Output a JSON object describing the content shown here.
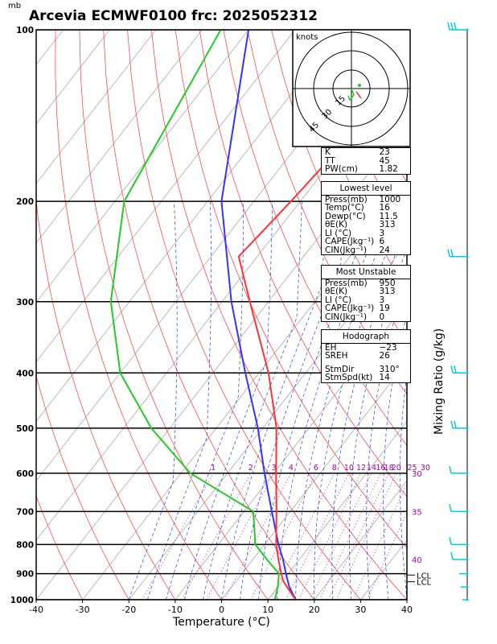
{
  "title": "Arcevia ECMWF0100 frc: 2025052312",
  "unit_mb": "mb",
  "chart_data": {
    "type": "skew-t",
    "xlabel": "Temperature (°C)",
    "right_label": "Mixing Ratio (g/kg)",
    "xlim": [
      -40,
      40
    ],
    "ylim": [
      1000,
      100
    ],
    "x_ticks": [
      "-40",
      "-30",
      "-20",
      "-10",
      "0",
      "10",
      "20",
      "30",
      "40"
    ],
    "p_levels": [
      "100",
      "200",
      "300",
      "400",
      "500",
      "600",
      "700",
      "800",
      "900",
      "1000"
    ],
    "temperature": [
      {
        "p": 1000,
        "t": 16
      },
      {
        "p": 975,
        "t": 14
      },
      {
        "p": 950,
        "t": 12
      },
      {
        "p": 925,
        "t": 10
      },
      {
        "p": 900,
        "t": 8.5
      },
      {
        "p": 850,
        "t": 5.5
      },
      {
        "p": 800,
        "t": 2.5
      },
      {
        "p": 700,
        "t": -3
      },
      {
        "p": 600,
        "t": -9.5
      },
      {
        "p": 500,
        "t": -17
      },
      {
        "p": 400,
        "t": -28
      },
      {
        "p": 300,
        "t": -44
      },
      {
        "p": 250,
        "t": -54
      },
      {
        "p": 200,
        "t": -52
      },
      {
        "p": 150,
        "t": -50
      },
      {
        "p": 100,
        "t": -52
      }
    ],
    "dewpoint": [
      {
        "p": 1000,
        "t": 11.5
      },
      {
        "p": 950,
        "t": 10
      },
      {
        "p": 900,
        "t": 8
      },
      {
        "p": 850,
        "t": 3
      },
      {
        "p": 800,
        "t": -2
      },
      {
        "p": 700,
        "t": -8
      },
      {
        "p": 600,
        "t": -28
      },
      {
        "p": 500,
        "t": -44
      },
      {
        "p": 400,
        "t": -60
      },
      {
        "p": 300,
        "t": -74
      },
      {
        "p": 200,
        "t": -88
      },
      {
        "p": 100,
        "t": -96
      }
    ],
    "parcel": [
      {
        "p": 1000,
        "t": 16
      },
      {
        "p": 950,
        "t": 12.5
      },
      {
        "p": 900,
        "t": 9.5
      },
      {
        "p": 850,
        "t": 6.5
      },
      {
        "p": 800,
        "t": 3
      },
      {
        "p": 700,
        "t": -4
      },
      {
        "p": 600,
        "t": -12
      },
      {
        "p": 500,
        "t": -21
      },
      {
        "p": 400,
        "t": -33
      },
      {
        "p": 300,
        "t": -48
      },
      {
        "p": 200,
        "t": -67
      },
      {
        "p": 100,
        "t": -90
      }
    ],
    "mixing_ratio_labels": [
      "1",
      "2",
      "3",
      "4",
      "6",
      "8",
      "10",
      "12",
      "14",
      "16",
      "18",
      "20",
      "25",
      "30"
    ],
    "theta_e_labels": [
      {
        "text": "30",
        "p": 600
      },
      {
        "text": "35",
        "p": 700
      },
      {
        "text": "40",
        "p": 850
      }
    ],
    "lcl_labels": [
      "LCL",
      "LCL"
    ],
    "hodograph": {
      "unit": "knots",
      "rings": [
        "15",
        "30",
        "45"
      ]
    }
  },
  "indices": {
    "top": [
      {
        "k": "K",
        "v": "23"
      },
      {
        "k": "TT",
        "v": "45"
      },
      {
        "k": "PW(cm)",
        "v": "1.82"
      }
    ],
    "lowest": {
      "header": "Lowest level",
      "rows": [
        {
          "k": "Press(mb)",
          "v": "1000"
        },
        {
          "k": "Temp(°C)",
          "v": "16"
        },
        {
          "k": "Dewp(°C)",
          "v": "11.5"
        },
        {
          "k": "θE(K)",
          "v": "313"
        },
        {
          "k": "LI (°C)",
          "v": "3"
        },
        {
          "k": "CAPE(Jkg⁻¹)",
          "v": "6"
        },
        {
          "k": "CIN(Jkg⁻¹)",
          "v": "24"
        }
      ]
    },
    "unstable": {
      "header": "Most Unstable",
      "rows": [
        {
          "k": "Press(mb)",
          "v": "950"
        },
        {
          "k": "θE(K)",
          "v": "313"
        },
        {
          "k": "LI (°C)",
          "v": "3"
        },
        {
          "k": "CAPE(Jkg⁻¹)",
          "v": "19"
        },
        {
          "k": "CIN(Jkg⁻¹)",
          "v": "0"
        }
      ]
    },
    "hodo": {
      "header": "Hodograph",
      "rows": [
        {
          "k": "EH",
          "v": "−23"
        },
        {
          "k": "SREH",
          "v": "26"
        },
        {
          "k": "StmDir",
          "v": "310°"
        },
        {
          "k": "StmSpd(kt)",
          "v": "14"
        }
      ]
    }
  },
  "colors": {
    "temperature": "#ff3333",
    "dewpoint": "#22cc22",
    "parcel": "#3333ff",
    "isotherm": "#aaaaaa",
    "dry_adiabat": "#ff3333",
    "moist_adiabat": "#2244dd",
    "mixing_ratio": "#aa00aa",
    "wind": "#00ccdd",
    "lcl": "#000000"
  }
}
